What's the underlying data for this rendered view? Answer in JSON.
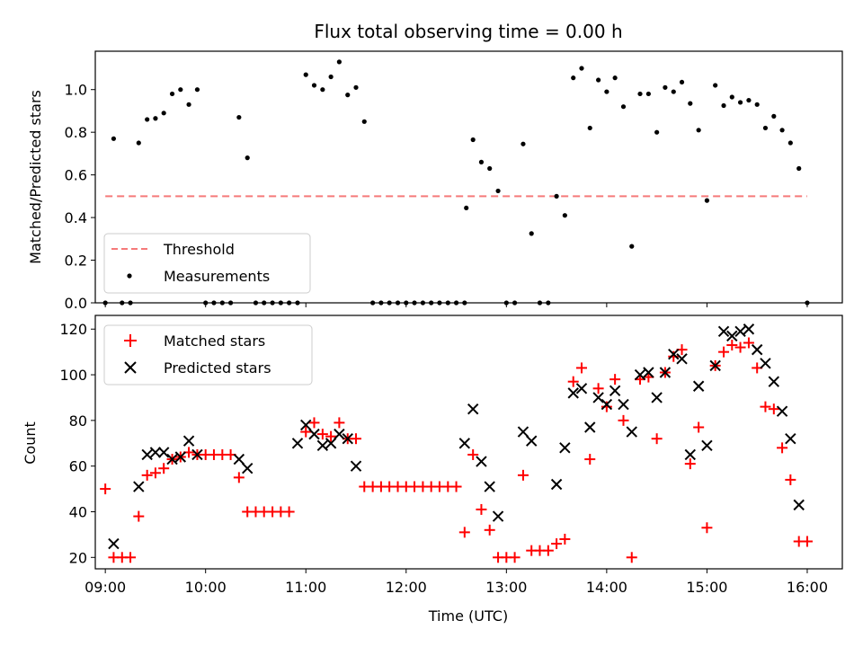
{
  "chart_data": [
    {
      "type": "scatter",
      "title": "Flux total observing time = 0.00 h",
      "xlabel": "",
      "ylabel": "Matched/Predicted stars",
      "ylim": [
        0,
        1.18
      ],
      "yticks": [
        0.0,
        0.2,
        0.4,
        0.6,
        0.8,
        1.0
      ],
      "xlim": [
        8.9,
        16.35
      ],
      "legend_position": "lower-left",
      "threshold": {
        "name": "Threshold",
        "value": 0.5,
        "x_range": [
          9.0,
          16.0
        ],
        "color": "#f57a7a"
      },
      "series": [
        {
          "name": "Measurements",
          "color": "#000000",
          "points": [
            [
              9.0,
              0
            ],
            [
              9.083,
              0.77
            ],
            [
              9.167,
              0
            ],
            [
              9.25,
              0
            ],
            [
              9.333,
              0.75
            ],
            [
              9.417,
              0.86
            ],
            [
              9.5,
              0.865
            ],
            [
              9.583,
              0.89
            ],
            [
              9.667,
              0.98
            ],
            [
              9.75,
              1.0
            ],
            [
              9.833,
              0.93
            ],
            [
              9.917,
              1.0
            ],
            [
              10.0,
              0
            ],
            [
              10.083,
              0
            ],
            [
              10.167,
              0
            ],
            [
              10.25,
              0
            ],
            [
              10.333,
              0.87
            ],
            [
              10.417,
              0.68
            ],
            [
              10.5,
              0
            ],
            [
              10.583,
              0
            ],
            [
              10.667,
              0
            ],
            [
              10.75,
              0
            ],
            [
              10.833,
              0
            ],
            [
              10.917,
              0
            ],
            [
              11.0,
              1.07
            ],
            [
              11.083,
              1.02
            ],
            [
              11.167,
              1.0
            ],
            [
              11.25,
              1.06
            ],
            [
              11.333,
              1.13
            ],
            [
              11.417,
              0.975
            ],
            [
              11.5,
              1.01
            ],
            [
              11.583,
              0.85
            ],
            [
              11.667,
              0
            ],
            [
              11.75,
              0
            ],
            [
              11.833,
              0
            ],
            [
              11.917,
              0
            ],
            [
              12.0,
              0
            ],
            [
              12.083,
              0
            ],
            [
              12.167,
              0
            ],
            [
              12.25,
              0
            ],
            [
              12.333,
              0
            ],
            [
              12.417,
              0
            ],
            [
              12.5,
              0
            ],
            [
              12.583,
              0
            ],
            [
              12.6,
              0.445
            ],
            [
              12.667,
              0.765
            ],
            [
              12.75,
              0.66
            ],
            [
              12.833,
              0.63
            ],
            [
              12.917,
              0.525
            ],
            [
              13.0,
              0
            ],
            [
              13.083,
              0
            ],
            [
              13.167,
              0.745
            ],
            [
              13.25,
              0.325
            ],
            [
              13.333,
              0
            ],
            [
              13.417,
              0
            ],
            [
              13.5,
              0.5
            ],
            [
              13.583,
              0.41
            ],
            [
              13.667,
              1.055
            ],
            [
              13.75,
              1.1
            ],
            [
              13.833,
              0.82
            ],
            [
              13.917,
              1.045
            ],
            [
              14.0,
              0.99
            ],
            [
              14.083,
              1.055
            ],
            [
              14.167,
              0.92
            ],
            [
              14.25,
              0.265
            ],
            [
              14.333,
              0.98
            ],
            [
              14.417,
              0.98
            ],
            [
              14.5,
              0.8
            ],
            [
              14.583,
              1.01
            ],
            [
              14.667,
              0.99
            ],
            [
              14.75,
              1.035
            ],
            [
              14.833,
              0.935
            ],
            [
              14.917,
              0.81
            ],
            [
              15.0,
              0.48
            ],
            [
              15.083,
              1.02
            ],
            [
              15.167,
              0.925
            ],
            [
              15.25,
              0.965
            ],
            [
              15.333,
              0.94
            ],
            [
              15.417,
              0.95
            ],
            [
              15.5,
              0.93
            ],
            [
              15.583,
              0.82
            ],
            [
              15.667,
              0.875
            ],
            [
              15.75,
              0.81
            ],
            [
              15.833,
              0.75
            ],
            [
              15.917,
              0.63
            ],
            [
              16.0,
              0
            ]
          ]
        }
      ]
    },
    {
      "type": "scatter",
      "title": "",
      "xlabel": "Time (UTC)",
      "ylabel": "Count",
      "ylim": [
        15,
        126
      ],
      "yticks": [
        20,
        40,
        60,
        80,
        100,
        120
      ],
      "xlim": [
        8.9,
        16.35
      ],
      "xticks": [
        9,
        10,
        11,
        12,
        13,
        14,
        15,
        16
      ],
      "xticklabels": [
        "09:00",
        "10:00",
        "11:00",
        "12:00",
        "13:00",
        "14:00",
        "15:00",
        "16:00"
      ],
      "legend_position": "upper-left",
      "series": [
        {
          "name": "Matched stars",
          "marker": "plus",
          "color": "#ff0000",
          "points": [
            [
              9.0,
              50
            ],
            [
              9.083,
              20
            ],
            [
              9.167,
              20
            ],
            [
              9.25,
              20
            ],
            [
              9.333,
              38
            ],
            [
              9.417,
              56
            ],
            [
              9.5,
              57
            ],
            [
              9.583,
              59
            ],
            [
              9.667,
              63
            ],
            [
              9.75,
              64
            ],
            [
              9.833,
              66
            ],
            [
              9.917,
              65
            ],
            [
              10.0,
              65
            ],
            [
              10.083,
              65
            ],
            [
              10.167,
              65
            ],
            [
              10.25,
              65
            ],
            [
              10.333,
              55
            ],
            [
              10.417,
              40
            ],
            [
              10.5,
              40
            ],
            [
              10.583,
              40
            ],
            [
              10.667,
              40
            ],
            [
              10.75,
              40
            ],
            [
              10.833,
              40
            ],
            [
              11.0,
              75
            ],
            [
              11.083,
              79
            ],
            [
              11.167,
              74
            ],
            [
              11.25,
              73
            ],
            [
              11.333,
              79
            ],
            [
              11.417,
              72
            ],
            [
              11.5,
              72
            ],
            [
              11.583,
              51
            ],
            [
              11.667,
              51
            ],
            [
              11.75,
              51
            ],
            [
              11.833,
              51
            ],
            [
              11.917,
              51
            ],
            [
              12.0,
              51
            ],
            [
              12.083,
              51
            ],
            [
              12.167,
              51
            ],
            [
              12.25,
              51
            ],
            [
              12.333,
              51
            ],
            [
              12.417,
              51
            ],
            [
              12.5,
              51
            ],
            [
              12.583,
              31
            ],
            [
              12.667,
              65
            ],
            [
              12.75,
              41
            ],
            [
              12.833,
              32
            ],
            [
              12.917,
              20
            ],
            [
              13.0,
              20
            ],
            [
              13.083,
              20
            ],
            [
              13.167,
              56
            ],
            [
              13.25,
              23
            ],
            [
              13.333,
              23
            ],
            [
              13.417,
              23
            ],
            [
              13.5,
              26
            ],
            [
              13.583,
              28
            ],
            [
              13.667,
              97
            ],
            [
              13.75,
              103
            ],
            [
              13.833,
              63
            ],
            [
              13.917,
              94
            ],
            [
              14.0,
              86
            ],
            [
              14.083,
              98
            ],
            [
              14.167,
              80
            ],
            [
              14.25,
              20
            ],
            [
              14.333,
              98
            ],
            [
              14.417,
              99
            ],
            [
              14.5,
              72
            ],
            [
              14.583,
              101
            ],
            [
              14.667,
              108
            ],
            [
              14.75,
              111
            ],
            [
              14.833,
              61
            ],
            [
              14.917,
              77
            ],
            [
              15.0,
              33
            ],
            [
              15.083,
              104
            ],
            [
              15.167,
              110
            ],
            [
              15.25,
              113
            ],
            [
              15.333,
              112
            ],
            [
              15.417,
              114
            ],
            [
              15.5,
              103
            ],
            [
              15.583,
              86
            ],
            [
              15.667,
              85
            ],
            [
              15.75,
              68
            ],
            [
              15.833,
              54
            ],
            [
              15.917,
              27
            ],
            [
              16.0,
              27
            ]
          ]
        },
        {
          "name": "Predicted stars",
          "marker": "x",
          "color": "#000000",
          "points": [
            [
              9.083,
              26
            ],
            [
              9.333,
              51
            ],
            [
              9.417,
              65
            ],
            [
              9.5,
              66
            ],
            [
              9.583,
              66
            ],
            [
              9.667,
              63
            ],
            [
              9.75,
              64
            ],
            [
              9.833,
              71
            ],
            [
              9.917,
              65
            ],
            [
              10.333,
              63
            ],
            [
              10.417,
              59
            ],
            [
              10.917,
              70
            ],
            [
              11.0,
              78
            ],
            [
              11.083,
              74
            ],
            [
              11.167,
              69
            ],
            [
              11.25,
              70
            ],
            [
              11.333,
              74
            ],
            [
              11.417,
              72
            ],
            [
              11.5,
              60
            ],
            [
              12.583,
              70
            ],
            [
              12.667,
              85
            ],
            [
              12.75,
              62
            ],
            [
              12.833,
              51
            ],
            [
              12.917,
              38
            ],
            [
              13.167,
              75
            ],
            [
              13.25,
              71
            ],
            [
              13.5,
              52
            ],
            [
              13.583,
              68
            ],
            [
              13.667,
              92
            ],
            [
              13.75,
              94
            ],
            [
              13.833,
              77
            ],
            [
              13.917,
              90
            ],
            [
              14.0,
              87
            ],
            [
              14.083,
              93
            ],
            [
              14.167,
              87
            ],
            [
              14.25,
              75
            ],
            [
              14.333,
              100
            ],
            [
              14.417,
              101
            ],
            [
              14.5,
              90
            ],
            [
              14.583,
              101
            ],
            [
              14.667,
              109
            ],
            [
              14.75,
              107
            ],
            [
              14.833,
              65
            ],
            [
              14.917,
              95
            ],
            [
              15.0,
              69
            ],
            [
              15.083,
              104
            ],
            [
              15.167,
              119
            ],
            [
              15.25,
              117
            ],
            [
              15.333,
              119
            ],
            [
              15.417,
              120
            ],
            [
              15.5,
              111
            ],
            [
              15.583,
              105
            ],
            [
              15.667,
              97
            ],
            [
              15.75,
              84
            ],
            [
              15.833,
              72
            ],
            [
              15.917,
              43
            ]
          ]
        }
      ]
    }
  ]
}
